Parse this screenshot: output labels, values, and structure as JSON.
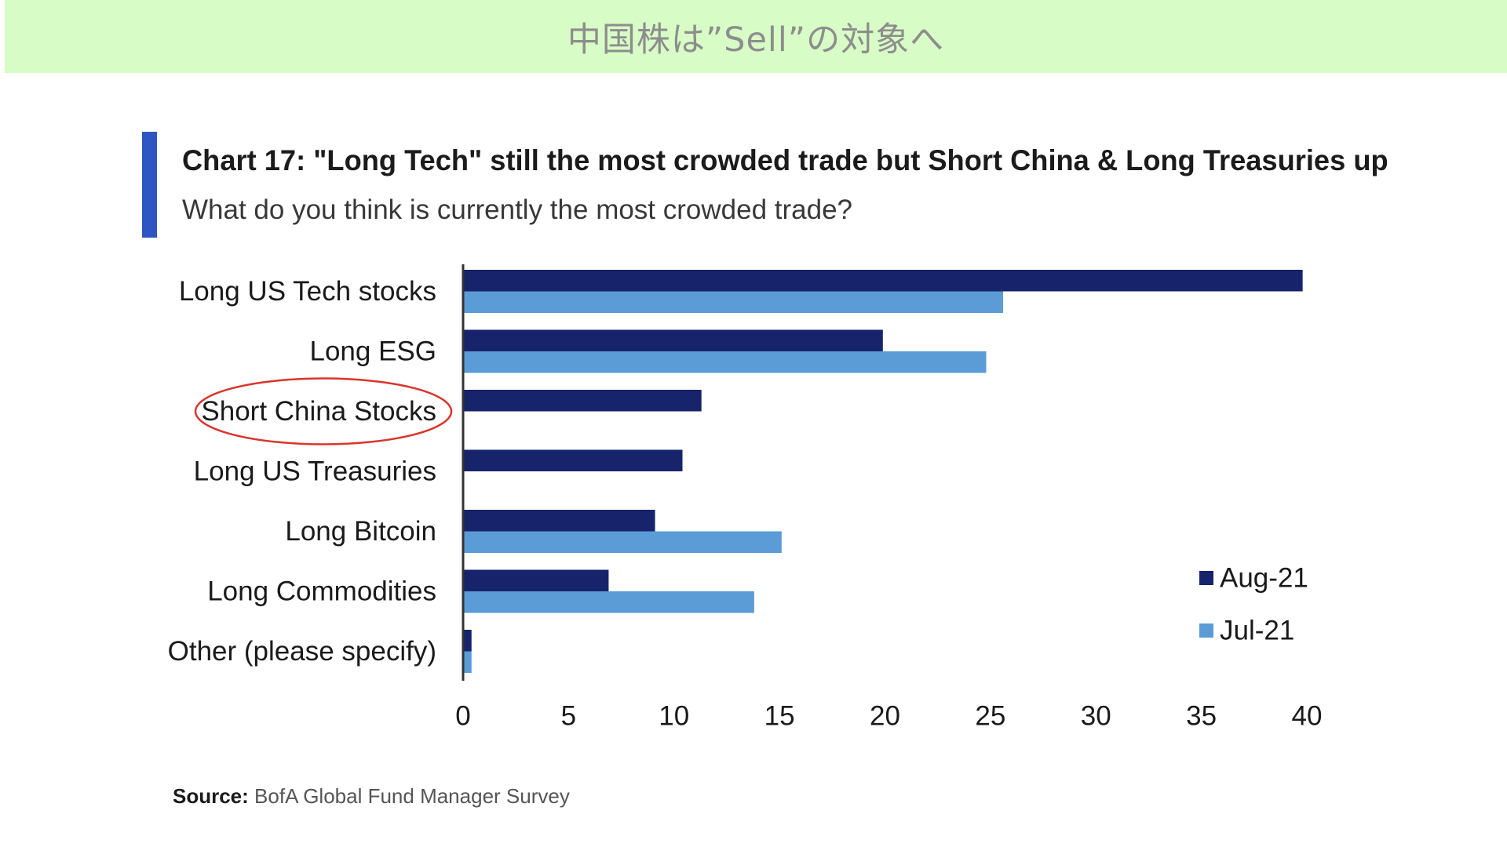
{
  "banner": {
    "title": "中国株は”Sell”の対象へ"
  },
  "source": {
    "label": "Source:",
    "text": "BofA Global Fund Manager Survey"
  },
  "colors": {
    "banner_bg": "#d8fcc6",
    "accent": "#2f55c2",
    "aug_21": "#17236a",
    "jul_21": "#5b9bd6",
    "highlight_ring": "#d9352b"
  },
  "highlight": {
    "category": "Short China Stocks"
  },
  "chart_data": {
    "type": "bar",
    "orientation": "horizontal",
    "title": "Chart 17: \"Long Tech\" still the most crowded trade but Short China & Long Treasuries up",
    "subtitle": "What do you think is currently the most crowded trade?",
    "categories": [
      "Long US Tech stocks",
      "Long ESG",
      "Short China Stocks",
      "Long US Treasuries",
      "Long Bitcoin",
      "Long Commodities",
      "Other (please specify)"
    ],
    "series": [
      {
        "name": "Aug-21",
        "values": [
          39.8,
          19.9,
          11.3,
          10.4,
          9.1,
          6.9,
          0.4
        ]
      },
      {
        "name": "Jul-21",
        "values": [
          25.6,
          24.8,
          null,
          null,
          15.1,
          13.8,
          0.4
        ]
      }
    ],
    "xlim": [
      0,
      40
    ],
    "xticks": [
      0,
      5,
      10,
      15,
      20,
      25,
      30,
      35,
      40
    ],
    "xlabel": "",
    "ylabel": "",
    "legend_position": "right",
    "grid": false
  }
}
